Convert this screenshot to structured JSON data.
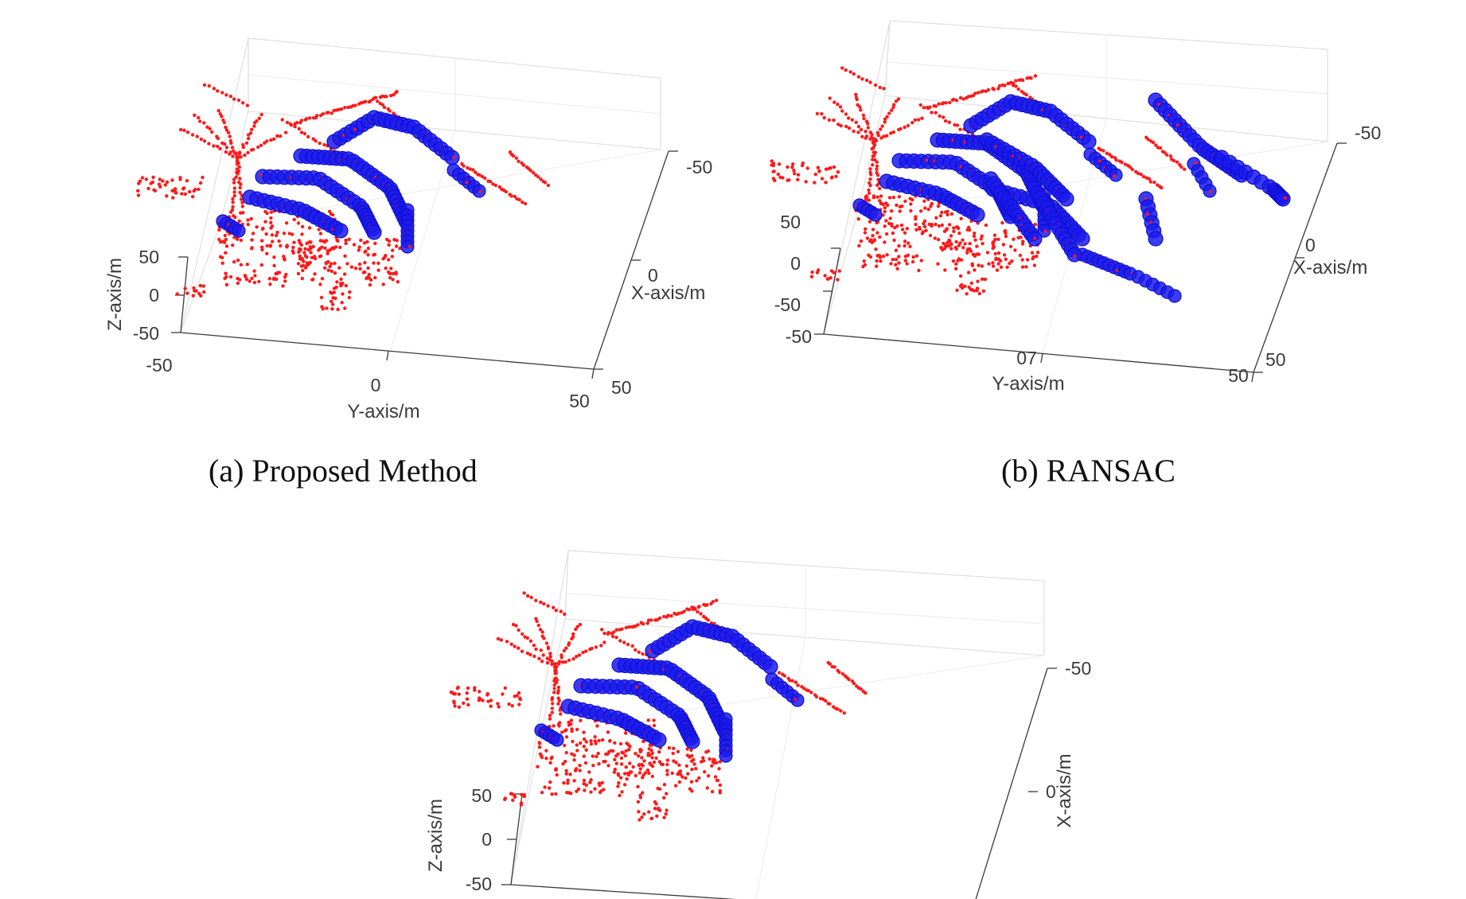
{
  "colors": {
    "ground_points": "#ff1a1a",
    "detected_points": "#1a1aee",
    "axis": "#3a3a3a",
    "box": "#e0e0e0"
  },
  "chart_data": [
    {
      "type": "scatter",
      "subtype": "3d-point-cloud",
      "caption": "(a) Proposed Method",
      "xlabel": "X-axis/m",
      "ylabel": "Y-axis/m",
      "zlabel": "Z-axis/m",
      "xlim": [
        -50,
        50
      ],
      "ylim": [
        -50,
        50
      ],
      "zlim": [
        -50,
        50
      ],
      "x_ticks": [
        "-50",
        "0",
        "50"
      ],
      "y_ticks": [
        "-50",
        "0",
        "50"
      ],
      "z_ticks": [
        "50",
        "0",
        "-50"
      ],
      "grid": true,
      "series": [
        {
          "marker": "dot",
          "color": "#ff1a1a"
        },
        {
          "marker": "circle",
          "color": "#1a1aee"
        }
      ]
    },
    {
      "type": "scatter",
      "subtype": "3d-point-cloud",
      "caption": "(b) RANSAC",
      "xlabel": "X-axis/m",
      "ylabel": "Y-axis/m",
      "zlabel": "",
      "xlim": [
        -50,
        50
      ],
      "ylim": [
        -50,
        50
      ],
      "zlim": [
        -50,
        50
      ],
      "x_ticks": [
        "-50",
        "0",
        "50"
      ],
      "y_ticks": [
        "07",
        "50"
      ],
      "z_ticks": [
        "50",
        "0",
        "-50",
        "-50"
      ],
      "grid": true,
      "series": [
        {
          "marker": "dot",
          "color": "#ff1a1a"
        },
        {
          "marker": "circle",
          "color": "#1a1aee"
        }
      ]
    },
    {
      "type": "scatter",
      "subtype": "3d-point-cloud",
      "caption": "",
      "xlabel": "X-axis/m",
      "ylabel": "",
      "zlabel": "Z-axis/m",
      "xlim": [
        -50,
        50
      ],
      "ylim": [
        -50,
        50
      ],
      "zlim": [
        -50,
        50
      ],
      "x_ticks": [
        "-50",
        "0"
      ],
      "y_ticks": [],
      "z_ticks": [
        "50",
        "0",
        "-50"
      ],
      "grid": true,
      "series": [
        {
          "marker": "dot",
          "color": "#ff1a1a"
        },
        {
          "marker": "circle",
          "color": "#1a1aee"
        }
      ]
    }
  ]
}
